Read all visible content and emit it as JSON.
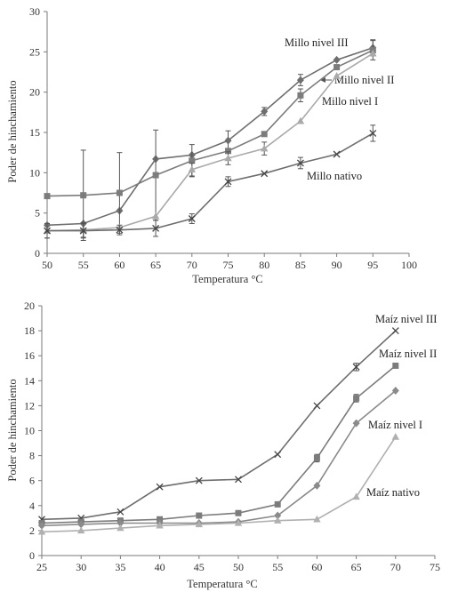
{
  "chart_data": [
    {
      "type": "line",
      "xlabel": "Temperatura °C",
      "ylabel": "Poder de hinchamiento",
      "xlim": [
        50,
        100
      ],
      "ylim": [
        0,
        30
      ],
      "xticks": [
        50,
        55,
        60,
        65,
        70,
        75,
        80,
        85,
        90,
        95,
        100
      ],
      "yticks": [
        0,
        5,
        10,
        15,
        20,
        25,
        30
      ],
      "grid": false,
      "x": [
        50,
        55,
        60,
        65,
        70,
        75,
        80,
        85,
        90,
        95
      ],
      "series": [
        {
          "name": "Millo nivel III",
          "marker": "diamond",
          "color": "#6e6e6e",
          "values": [
            3.5,
            3.7,
            5.3,
            11.7,
            12.2,
            14.0,
            17.6,
            21.5,
            24.0,
            25.5
          ],
          "err": [
            0,
            0,
            0,
            0,
            0,
            1.2,
            0.5,
            0.7,
            0,
            1
          ]
        },
        {
          "name": "Millo nivel II",
          "marker": "square",
          "color": "#7c7c7c",
          "values": [
            7.1,
            7.2,
            7.5,
            9.7,
            11.5,
            12.7,
            14.8,
            19.6,
            23.1,
            25.2
          ],
          "err": [
            0,
            5.6,
            5,
            5.6,
            2,
            0,
            0,
            0.8,
            0,
            1.2
          ]
        },
        {
          "name": "Millo nivel I",
          "marker": "triangle",
          "color": "#aaaaaa",
          "values": [
            2.8,
            2.9,
            3.2,
            4.6,
            10.4,
            11.8,
            13.0,
            16.4,
            22.0,
            24.8
          ],
          "err": [
            0.9,
            0.9,
            0,
            0,
            0.8,
            0.8,
            0.8,
            0,
            0,
            0
          ]
        },
        {
          "name": "Millo nativo",
          "marker": "x",
          "color": "#6e6e6e",
          "values": [
            2.8,
            2.8,
            2.9,
            3.1,
            4.3,
            8.9,
            9.9,
            11.2,
            12.3,
            14.9
          ],
          "err": [
            0.9,
            0.9,
            0.6,
            1,
            0.6,
            0.6,
            0,
            0.7,
            0,
            1
          ]
        }
      ]
    },
    {
      "type": "line",
      "xlabel": "Temperatura °C",
      "ylabel": "Poder de hinchamiento",
      "xlim": [
        25,
        75
      ],
      "ylim": [
        0,
        20
      ],
      "xticks": [
        25,
        30,
        35,
        40,
        45,
        50,
        55,
        60,
        65,
        70,
        75
      ],
      "yticks": [
        0,
        2,
        4,
        6,
        8,
        10,
        12,
        14,
        16,
        18,
        20
      ],
      "grid": false,
      "x": [
        25,
        30,
        35,
        40,
        45,
        50,
        55,
        60,
        65,
        70
      ],
      "series": [
        {
          "name": "Maíz nivel III",
          "marker": "x",
          "color": "#6e6e6e",
          "values": [
            2.9,
            3.0,
            3.5,
            5.5,
            6.0,
            6.1,
            8.1,
            12.0,
            15.1,
            18.0
          ],
          "err": [
            0,
            0,
            0,
            0,
            0,
            0,
            0,
            0,
            0.3,
            0
          ]
        },
        {
          "name": "Maíz nivel II",
          "marker": "square",
          "color": "#7c7c7c",
          "values": [
            2.6,
            2.7,
            2.8,
            2.9,
            3.2,
            3.4,
            4.1,
            7.8,
            12.6,
            15.2
          ],
          "err": [
            0,
            0,
            0,
            0,
            0,
            0,
            0,
            0.3,
            0.3,
            0
          ]
        },
        {
          "name": "Maíz nivel I",
          "marker": "diamond",
          "color": "#8a8a8a",
          "values": [
            2.4,
            2.5,
            2.6,
            2.6,
            2.6,
            2.7,
            3.2,
            5.6,
            10.6,
            13.2
          ],
          "err": [
            0,
            0,
            0,
            0,
            0,
            0,
            0,
            0,
            0,
            0
          ]
        },
        {
          "name": "Maíz nativo",
          "marker": "triangle",
          "color": "#b0b0b0",
          "values": [
            1.9,
            2.0,
            2.2,
            2.4,
            2.5,
            2.6,
            2.8,
            2.9,
            4.7,
            9.5
          ],
          "err": [
            0,
            0,
            0,
            0,
            0,
            0,
            0,
            0,
            0,
            0
          ]
        }
      ]
    }
  ]
}
